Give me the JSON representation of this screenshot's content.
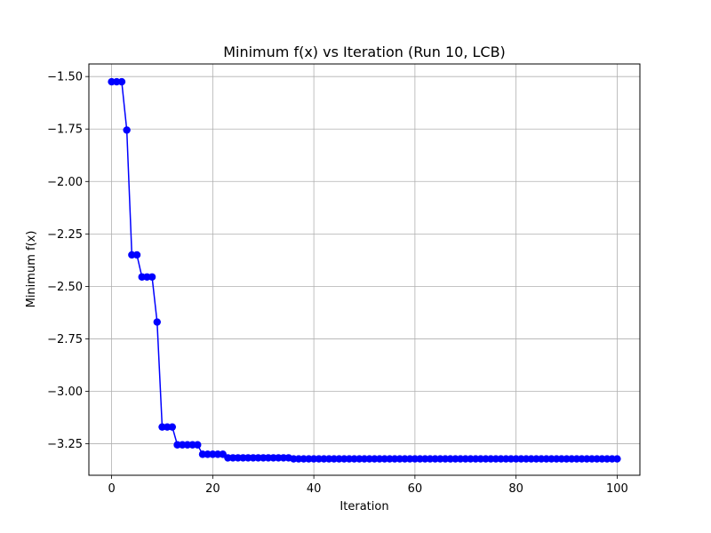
{
  "chart_data": {
    "type": "line",
    "title": "Minimum f(x) vs Iteration (Run 10, LCB)",
    "xlabel": "Iteration",
    "ylabel": "Minimum f(x)",
    "xlim": [
      -4.5,
      104.5
    ],
    "ylim": [
      -3.4,
      -1.44
    ],
    "grid": true,
    "xticks": [
      0,
      20,
      40,
      60,
      80,
      100
    ],
    "yticks": [
      -1.5,
      -1.75,
      -2.0,
      -2.25,
      -2.5,
      -2.75,
      -3.0,
      -3.25
    ],
    "xtick_labels": [
      "0",
      "20",
      "40",
      "60",
      "80",
      "100"
    ],
    "ytick_labels": [
      "−1.50",
      "−1.75",
      "−2.00",
      "−2.25",
      "−2.50",
      "−2.75",
      "−3.00",
      "−3.25"
    ],
    "series": [
      {
        "color": "#0000ff",
        "marker": "circle",
        "x": [
          0,
          1,
          2,
          3,
          4,
          5,
          6,
          7,
          8,
          9,
          10,
          11,
          12,
          13,
          14,
          15,
          16,
          17,
          18,
          19,
          20,
          21,
          22,
          23,
          24,
          25,
          26,
          27,
          28,
          29,
          30,
          31,
          32,
          33,
          34,
          35,
          36,
          37,
          38,
          39,
          40,
          41,
          42,
          43,
          44,
          45,
          46,
          47,
          48,
          49,
          50,
          51,
          52,
          53,
          54,
          55,
          56,
          57,
          58,
          59,
          60,
          61,
          62,
          63,
          64,
          65,
          66,
          67,
          68,
          69,
          70,
          71,
          72,
          73,
          74,
          75,
          76,
          77,
          78,
          79,
          80,
          81,
          82,
          83,
          84,
          85,
          86,
          87,
          88,
          89,
          90,
          91,
          92,
          93,
          94,
          95,
          96,
          97,
          98,
          99,
          100
        ],
        "y": [
          -1.525,
          -1.525,
          -1.525,
          -1.755,
          -2.35,
          -2.35,
          -2.455,
          -2.455,
          -2.455,
          -2.67,
          -3.17,
          -3.17,
          -3.17,
          -3.255,
          -3.255,
          -3.255,
          -3.255,
          -3.255,
          -3.3,
          -3.3,
          -3.3,
          -3.3,
          -3.3,
          -3.317,
          -3.317,
          -3.317,
          -3.317,
          -3.317,
          -3.317,
          -3.317,
          -3.317,
          -3.317,
          -3.317,
          -3.317,
          -3.317,
          -3.317,
          -3.322,
          -3.322,
          -3.322,
          -3.322,
          -3.322,
          -3.322,
          -3.322,
          -3.322,
          -3.322,
          -3.322,
          -3.322,
          -3.322,
          -3.322,
          -3.322,
          -3.322,
          -3.322,
          -3.322,
          -3.322,
          -3.322,
          -3.322,
          -3.322,
          -3.322,
          -3.322,
          -3.322,
          -3.322,
          -3.322,
          -3.322,
          -3.322,
          -3.322,
          -3.322,
          -3.322,
          -3.322,
          -3.322,
          -3.322,
          -3.322,
          -3.322,
          -3.322,
          -3.322,
          -3.322,
          -3.322,
          -3.322,
          -3.322,
          -3.322,
          -3.322,
          -3.322,
          -3.322,
          -3.322,
          -3.322,
          -3.322,
          -3.322,
          -3.322,
          -3.322,
          -3.322,
          -3.322,
          -3.322,
          -3.322,
          -3.322,
          -3.322,
          -3.322,
          -3.322,
          -3.322,
          -3.322,
          -3.322,
          -3.322,
          -3.322
        ]
      }
    ]
  }
}
